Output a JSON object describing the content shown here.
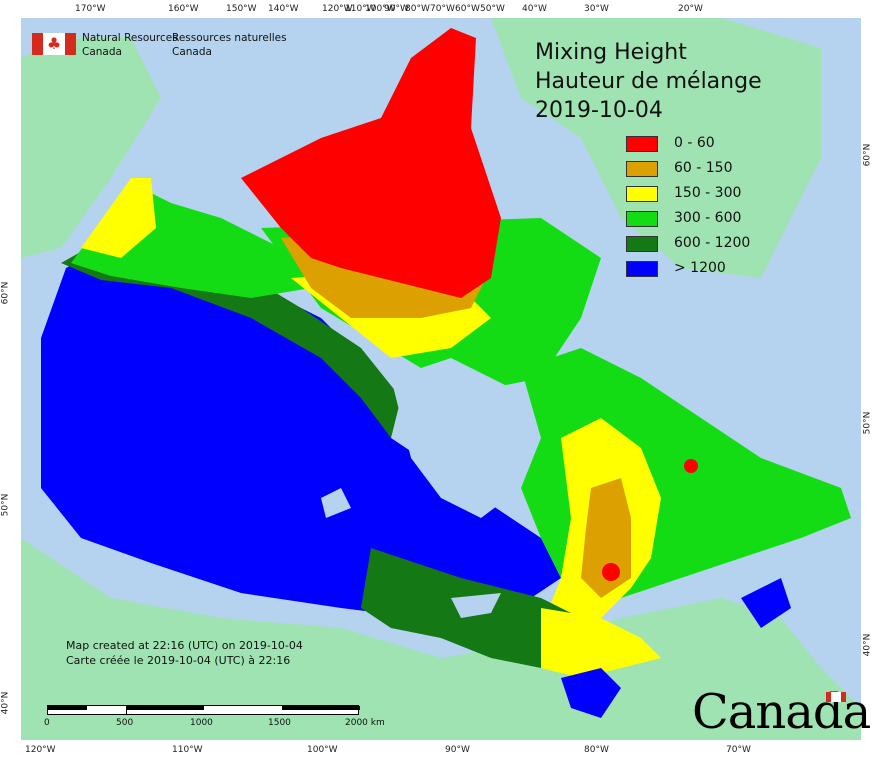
{
  "agency": {
    "en_line1": "Natural Resources",
    "en_line2": "Canada",
    "fr_line1": "Ressources naturelles",
    "fr_line2": "Canada"
  },
  "title": {
    "en": "Mixing Height",
    "fr": "Hauteur de mélange",
    "date": "2019-10-04"
  },
  "legend": [
    {
      "label": "0 - 60",
      "color": "#ff0000"
    },
    {
      "label": "60 - 150",
      "color": "#dca000"
    },
    {
      "label": "150 - 300",
      "color": "#ffff00"
    },
    {
      "label": "300 - 600",
      "color": "#14dc14"
    },
    {
      "label": "600 - 1200",
      "color": "#147814"
    },
    {
      "label": "> 1200",
      "color": "#0000ff"
    }
  ],
  "credit": {
    "en": "Map created at 22:16 (UTC) on 2019-10-04",
    "fr": "Carte créée le 2019-10-04 (UTC) à 22:16"
  },
  "scalebar": {
    "labels": [
      "0",
      "500",
      "1000",
      "1500",
      "2000 km"
    ]
  },
  "wordmark": "Canada",
  "ticks": {
    "top": [
      "170°W",
      "160°W",
      "150°W",
      "140°W",
      "120°W",
      "110°W",
      "100°W",
      "90°W",
      "80°W",
      "70°W",
      "60°W",
      "50°W",
      "40°W",
      "30°W",
      "20°W"
    ],
    "bottom": [
      "120°W",
      "110°W",
      "100°W",
      "90°W",
      "80°W",
      "70°W"
    ],
    "left": [
      "60°N",
      "50°N",
      "40°N"
    ],
    "right": [
      "60°N",
      "50°N",
      "40°N"
    ]
  },
  "colors": {
    "ocean": "#b5d3ef",
    "land_outside": "#9fe3b3",
    "ice_lakes": "#b5d3ef"
  }
}
